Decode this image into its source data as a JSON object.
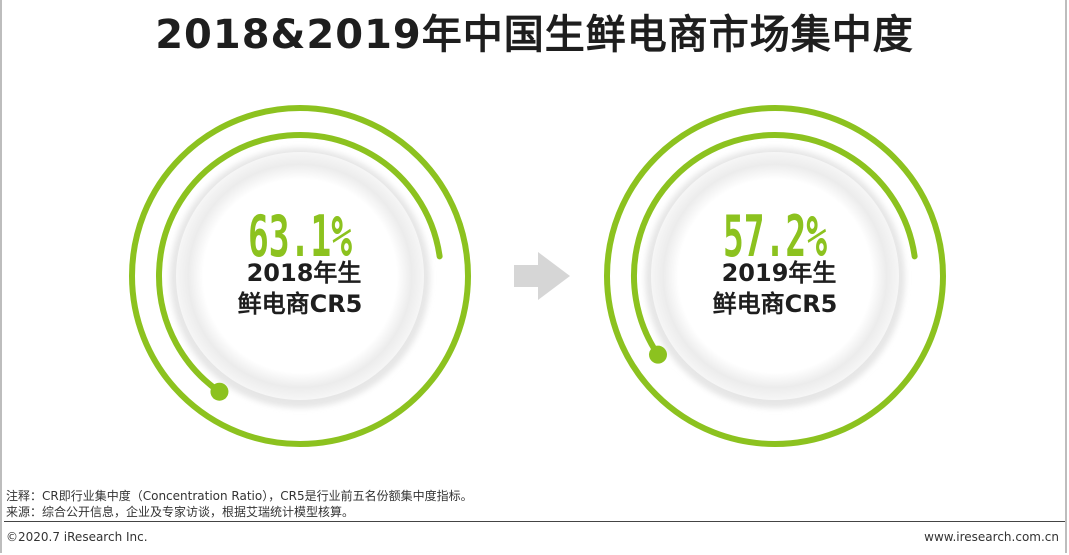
{
  "title": "2018&2019年中国生鲜电商市场集中度",
  "chart_data": {
    "type": "donut",
    "items": [
      {
        "value_label": "63.1%",
        "value": 63.1,
        "label_line1": "2018年生",
        "label_line2": "鲜电商CR5"
      },
      {
        "value_label": "57.2%",
        "value": 57.2,
        "label_line1": "2019年生",
        "label_line2": "鲜电商CR5"
      }
    ]
  },
  "colors": {
    "accent": "#8cc21f",
    "arrow": "#d6d6d6",
    "disc": "#f2f2f2"
  },
  "notes": {
    "note": "注释：CR即行业集中度（Concentration Ratio），CR5是行业前五名份额集中度指标。",
    "source": "来源：综合公开信息，企业及专家访谈，根据艾瑞统计模型核算。"
  },
  "footer": {
    "copyright": "©2020.7 iResearch Inc.",
    "website": "www.iresearch.com.cn"
  }
}
